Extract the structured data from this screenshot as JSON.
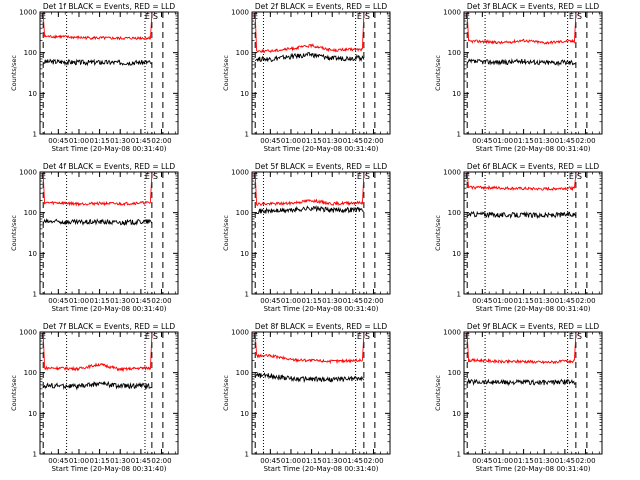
{
  "colors": {
    "events": "#000000",
    "lld": "#ff0000",
    "axes": "#000000",
    "background": "#ffffff"
  },
  "shared_axes": {
    "ylabel": "Counts/sec",
    "xlabel": "Start Time (20-May-08 00:31:40)",
    "xtick_labels": [
      "00:45",
      "01:00",
      "01:15",
      "01:30",
      "01:45",
      "02:00"
    ],
    "ytick_labels": [
      "1",
      "10",
      "100",
      "1000"
    ],
    "marker_left": "E",
    "marker_right": "E",
    "marker_right2": "S"
  },
  "chart_data": [
    {
      "type": "line",
      "title": "Det 1f BLACK = Events, RED = LLD",
      "yscale": "log",
      "ylim": [
        1,
        1000
      ],
      "xlim": [
        "00:31:40",
        "02:12:00"
      ],
      "x": [
        "00:45",
        "01:00",
        "01:15",
        "01:30",
        "01:45"
      ],
      "series": [
        {
          "name": "BLACK = Events",
          "values": [
            60,
            58,
            58,
            57,
            58
          ]
        },
        {
          "name": "RED = LLD",
          "values": [
            250,
            235,
            230,
            225,
            230
          ]
        }
      ],
      "dashed_lines_at": [
        "00:34",
        "01:53",
        "02:01"
      ],
      "dotted_lines_at": [
        "00:51",
        "01:48"
      ]
    },
    {
      "type": "line",
      "title": "Det 2f BLACK = Events, RED = LLD",
      "yscale": "log",
      "ylim": [
        1,
        1000
      ],
      "xlim": [
        "00:31:40",
        "02:12:00"
      ],
      "x": [
        "00:45",
        "01:00",
        "01:15",
        "01:30",
        "01:45"
      ],
      "series": [
        {
          "name": "BLACK = Events",
          "values": [
            70,
            80,
            90,
            72,
            75
          ]
        },
        {
          "name": "RED = LLD",
          "values": [
            110,
            125,
            150,
            115,
            120
          ]
        }
      ],
      "dashed_lines_at": [
        "00:34",
        "01:53",
        "02:01"
      ],
      "dotted_lines_at": [
        "00:40",
        "01:47"
      ]
    },
    {
      "type": "line",
      "title": "Det 3f BLACK = Events, RED = LLD",
      "yscale": "log",
      "ylim": [
        1,
        1000
      ],
      "xlim": [
        "00:31:40",
        "02:12:00"
      ],
      "x": [
        "00:45",
        "01:00",
        "01:15",
        "01:30",
        "01:45"
      ],
      "series": [
        {
          "name": "BLACK = Events",
          "values": [
            60,
            58,
            62,
            57,
            58
          ]
        },
        {
          "name": "RED = LLD",
          "values": [
            190,
            175,
            200,
            175,
            190
          ]
        }
      ],
      "dashed_lines_at": [
        "00:34",
        "01:53",
        "02:01"
      ],
      "dotted_lines_at": [
        "00:47",
        "01:47"
      ]
    },
    {
      "type": "line",
      "title": "Det 4f BLACK = Events, RED = LLD",
      "yscale": "log",
      "ylim": [
        1,
        1000
      ],
      "xlim": [
        "00:31:40",
        "02:12:00"
      ],
      "x": [
        "00:45",
        "01:00",
        "01:15",
        "01:30",
        "01:45"
      ],
      "series": [
        {
          "name": "BLACK = Events",
          "values": [
            60,
            58,
            60,
            57,
            60
          ]
        },
        {
          "name": "RED = LLD",
          "values": [
            175,
            165,
            170,
            165,
            175
          ]
        }
      ],
      "dashed_lines_at": [
        "00:34",
        "01:53",
        "02:01"
      ],
      "dotted_lines_at": [
        "00:51",
        "01:48"
      ]
    },
    {
      "type": "line",
      "title": "Det 5f BLACK = Events, RED = LLD",
      "yscale": "log",
      "ylim": [
        1,
        1000
      ],
      "xlim": [
        "00:31:40",
        "02:12:00"
      ],
      "x": [
        "00:45",
        "01:00",
        "01:15",
        "01:30",
        "01:45"
      ],
      "series": [
        {
          "name": "BLACK = Events",
          "values": [
            110,
            115,
            130,
            115,
            120
          ]
        },
        {
          "name": "RED = LLD",
          "values": [
            165,
            170,
            200,
            165,
            175
          ]
        }
      ],
      "dashed_lines_at": [
        "00:34",
        "01:53",
        "02:01"
      ],
      "dotted_lines_at": [
        "00:40",
        "01:47"
      ]
    },
    {
      "type": "line",
      "title": "Det 6f BLACK = Events, RED = LLD",
      "yscale": "log",
      "ylim": [
        1,
        1000
      ],
      "xlim": [
        "00:31:40",
        "02:12:00"
      ],
      "x": [
        "00:45",
        "01:00",
        "01:15",
        "01:30",
        "01:45"
      ],
      "series": [
        {
          "name": "BLACK = Events",
          "values": [
            92,
            88,
            88,
            86,
            90
          ]
        },
        {
          "name": "RED = LLD",
          "values": [
            420,
            400,
            390,
            380,
            400
          ]
        }
      ],
      "dashed_lines_at": [
        "00:34",
        "01:53",
        "02:01"
      ],
      "dotted_lines_at": [
        "00:47",
        "01:47"
      ]
    },
    {
      "type": "line",
      "title": "Det 7f BLACK = Events, RED = LLD",
      "yscale": "log",
      "ylim": [
        1,
        1000
      ],
      "xlim": [
        "00:31:40",
        "02:12:00"
      ],
      "x": [
        "00:45",
        "01:00",
        "01:15",
        "01:30",
        "01:45"
      ],
      "series": [
        {
          "name": "BLACK = Events",
          "values": [
            48,
            46,
            55,
            47,
            48
          ]
        },
        {
          "name": "RED = LLD",
          "values": [
            130,
            125,
            160,
            120,
            130
          ]
        }
      ],
      "dashed_lines_at": [
        "00:34",
        "01:53",
        "02:01"
      ],
      "dotted_lines_at": [
        "00:51",
        "01:48"
      ]
    },
    {
      "type": "line",
      "title": "Det 8f BLACK = Events, RED = LLD",
      "yscale": "log",
      "ylim": [
        1,
        1000
      ],
      "xlim": [
        "00:31:40",
        "02:12:00"
      ],
      "x": [
        "00:45",
        "01:00",
        "01:15",
        "01:30",
        "01:45"
      ],
      "series": [
        {
          "name": "BLACK = Events",
          "values": [
            85,
            72,
            70,
            68,
            72
          ]
        },
        {
          "name": "RED = LLD",
          "values": [
            260,
            210,
            200,
            190,
            200
          ]
        }
      ],
      "dashed_lines_at": [
        "00:34",
        "01:53",
        "02:01"
      ],
      "dotted_lines_at": [
        "00:40",
        "01:47"
      ]
    },
    {
      "type": "line",
      "title": "Det 9f BLACK = Events, RED = LLD",
      "yscale": "log",
      "ylim": [
        1,
        1000
      ],
      "xlim": [
        "00:31:40",
        "02:12:00"
      ],
      "x": [
        "00:45",
        "01:00",
        "01:15",
        "01:30",
        "01:45"
      ],
      "series": [
        {
          "name": "BLACK = Events",
          "values": [
            60,
            58,
            58,
            57,
            60
          ]
        },
        {
          "name": "RED = LLD",
          "values": [
            200,
            185,
            190,
            180,
            190
          ]
        }
      ],
      "dashed_lines_at": [
        "00:34",
        "01:53",
        "02:01"
      ],
      "dotted_lines_at": [
        "00:47",
        "01:47"
      ]
    }
  ]
}
